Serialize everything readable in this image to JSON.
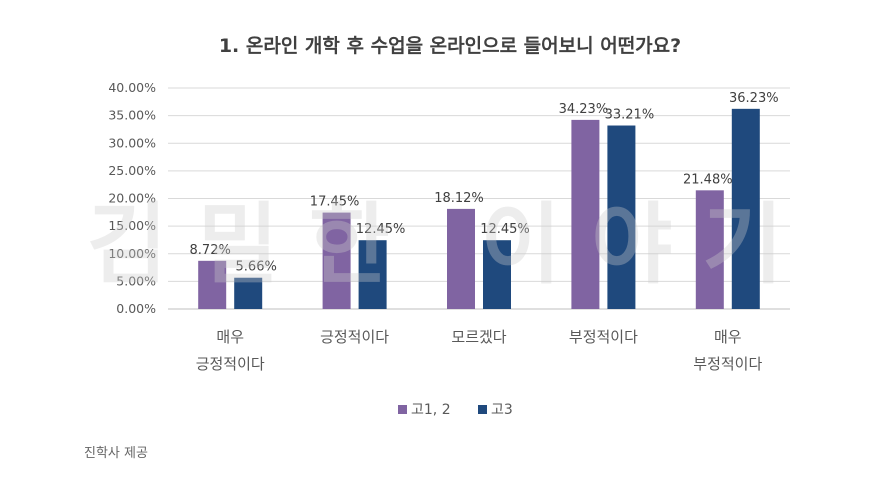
{
  "chart_data": {
    "type": "bar",
    "title": "1. 온라인 개학 후 수업을 온라인으로 들어보니 어떤가요?",
    "categories": [
      [
        "매우",
        "긍정적이다"
      ],
      [
        "긍정적이다"
      ],
      [
        "모르겠다"
      ],
      [
        "부정적이다"
      ],
      [
        "매우",
        "부정적이다"
      ]
    ],
    "series": [
      {
        "name": "고1, 2",
        "values": [
          8.72,
          17.45,
          18.12,
          34.23,
          21.48
        ],
        "labels": [
          "8.72%",
          "17.45%",
          "18.12%",
          "34.23%",
          "21.48%"
        ],
        "color": "#8064a2"
      },
      {
        "name": "고3",
        "values": [
          5.66,
          12.45,
          12.45,
          33.21,
          36.23
        ],
        "labels": [
          "5.66%",
          "12.45%",
          "12.45%",
          "33.21%",
          "36.23%"
        ],
        "color": "#1f497d"
      }
    ],
    "ylim": [
      0,
      40
    ],
    "yticks": [
      "0.00%",
      "5.00%",
      "10.00%",
      "15.00%",
      "20.00%",
      "25.00%",
      "30.00%",
      "35.00%",
      "40.00%"
    ],
    "grid": true,
    "legend": "bottom",
    "xlabel": "",
    "ylabel": ""
  },
  "watermark": "김밀한 이야기",
  "caption": "진학사 제공"
}
